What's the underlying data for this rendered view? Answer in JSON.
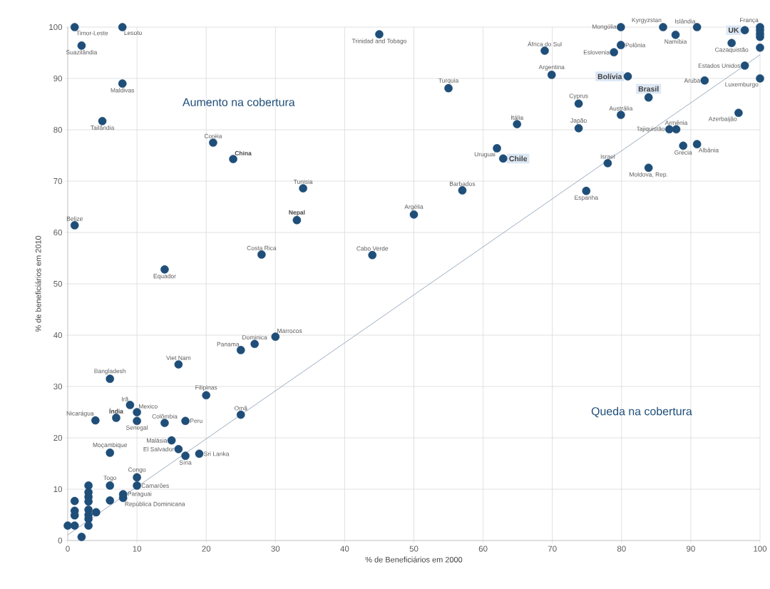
{
  "chart_data": {
    "type": "scatter",
    "xlabel": "% de Beneficiários em 2000",
    "ylabel": "% de beneficiários em 2010",
    "xlim": [
      0,
      100
    ],
    "ylim": [
      0,
      100
    ],
    "xticks": [
      0,
      10,
      20,
      30,
      40,
      50,
      60,
      70,
      80,
      90,
      100
    ],
    "yticks": [
      0,
      10,
      20,
      30,
      40,
      50,
      60,
      70,
      80,
      90,
      100
    ],
    "grid": true,
    "marker": "circle",
    "series": [
      {
        "color": "#1f4e79",
        "x": [
          1.0,
          7.9,
          2.0,
          7.9,
          5.0,
          1.0,
          21.0,
          23.9,
          34.0,
          33.1,
          28.0,
          14.0,
          45.0,
          55.0,
          64.9,
          62.0,
          62.9,
          57.0,
          50.0,
          44.0,
          68.9,
          69.9,
          79.9,
          79.9,
          78.9,
          80.9,
          83.9,
          79.9,
          73.8,
          73.8,
          86.0,
          90.9,
          87.8,
          97.8,
          100,
          95.9,
          97.8,
          92.0,
          100,
          96.9,
          86.9,
          87.9,
          88.9,
          90.9,
          78.0,
          83.9,
          74.9,
          30.0,
          27.0,
          25.0,
          16.0,
          6.1,
          20.0,
          25.0,
          9.0,
          10.0,
          10.0,
          14.0,
          17.0,
          15.0,
          16.0,
          19.0,
          17.0,
          7.0,
          4.0,
          6.1,
          10.0,
          10.0,
          6.1,
          8.0,
          8.0,
          100,
          100,
          100,
          100,
          6.1,
          1.0,
          1.0,
          1.0,
          1.0,
          0,
          2.0,
          3,
          3,
          3,
          3,
          3,
          3,
          3,
          3,
          4.1
        ],
        "values": [
          100,
          100,
          96.4,
          89.0,
          81.7,
          61.4,
          77.5,
          74.3,
          68.6,
          62.4,
          55.7,
          52.8,
          98.6,
          88.1,
          81.1,
          76.4,
          74.4,
          68.2,
          63.5,
          55.6,
          95.4,
          90.7,
          100,
          96.5,
          95.1,
          90.4,
          86.3,
          82.9,
          85.1,
          80.3,
          100,
          100,
          98.5,
          99.4,
          100,
          96.9,
          92.5,
          89.6,
          90.0,
          83.3,
          80.1,
          80.1,
          76.9,
          77.2,
          73.5,
          72.6,
          68.1,
          39.7,
          38.3,
          37.1,
          34.3,
          31.5,
          28.3,
          24.5,
          26.4,
          25.0,
          23.3,
          22.9,
          23.3,
          19.5,
          17.8,
          16.9,
          16.5,
          23.9,
          23.4,
          17.1,
          12.3,
          10.7,
          10.7,
          9.0,
          8.3,
          99.4,
          98.7,
          98.1,
          96.0,
          7.8,
          7.7,
          5.8,
          4.9,
          2.9,
          2.9,
          0.7,
          10.7,
          9.4,
          8.5,
          7.6,
          6.0,
          5.0,
          4.2,
          2.9,
          5.5
        ]
      },
      {
        "type": "line",
        "color": "#8497b0",
        "marker": "none",
        "x": [
          0,
          100
        ],
        "values": [
          1.1,
          94.6
        ]
      }
    ],
    "annotations": [
      "Aumento na cobertura",
      "Queda na cobertura",
      {
        "text": "Timor-Leste",
        "x": 1.0,
        "y": 100
      },
      {
        "text": "Lesoto",
        "x": 7.9,
        "y": 100
      },
      {
        "text": "Suazilândia",
        "x": 2.0,
        "y": 96.4
      },
      {
        "text": "Maldivas",
        "x": 7.9,
        "y": 89.0
      },
      {
        "text": "Tailândia",
        "x": 5.0,
        "y": 81.7
      },
      {
        "text": "Belize",
        "x": 1.0,
        "y": 61.4
      },
      {
        "text": "Coréia",
        "x": 21.0,
        "y": 77.5
      },
      {
        "text": "China",
        "x": 23.9,
        "y": 74.3
      },
      {
        "text": "Tunisia",
        "x": 34.0,
        "y": 68.6
      },
      {
        "text": "Nepal",
        "x": 33.1,
        "y": 62.4
      },
      {
        "text": "Costa Rica",
        "x": 28.0,
        "y": 55.7
      },
      {
        "text": "Equador",
        "x": 14.0,
        "y": 52.8
      },
      {
        "text": "Trinidad and Tobago",
        "x": 45.0,
        "y": 98.6
      },
      {
        "text": "Turquia",
        "x": 55.0,
        "y": 88.1
      },
      {
        "text": "Itália",
        "x": 64.9,
        "y": 81.1
      },
      {
        "text": "Uruguai",
        "x": 62.0,
        "y": 76.4
      },
      {
        "text": "Chile",
        "x": 62.9,
        "y": 74.4
      },
      {
        "text": "Barbados",
        "x": 57.0,
        "y": 68.2
      },
      {
        "text": "Argélia",
        "x": 50.0,
        "y": 63.5
      },
      {
        "text": "Cabo Verde",
        "x": 44.0,
        "y": 55.6
      },
      {
        "text": "África do Sul",
        "x": 68.9,
        "y": 95.4
      },
      {
        "text": "Argentina",
        "x": 69.9,
        "y": 90.7
      },
      {
        "text": "Mongólia",
        "x": 79.9,
        "y": 100
      },
      {
        "text": "Polônia",
        "x": 79.9,
        "y": 96.5
      },
      {
        "text": "Eslovenia",
        "x": 78.9,
        "y": 95.1
      },
      {
        "text": "Bolívia",
        "x": 80.9,
        "y": 90.4
      },
      {
        "text": "Brasil",
        "x": 83.9,
        "y": 86.3
      },
      {
        "text": "Austrália",
        "x": 79.9,
        "y": 82.9
      },
      {
        "text": "Cyprus",
        "x": 73.8,
        "y": 85.1
      },
      {
        "text": "Japão",
        "x": 73.8,
        "y": 80.3
      },
      {
        "text": "Kyrgyzstan",
        "x": 86.0,
        "y": 100
      },
      {
        "text": "Islândia",
        "x": 90.9,
        "y": 100
      },
      {
        "text": "Namíbia",
        "x": 87.8,
        "y": 98.5
      },
      {
        "text": "UK",
        "x": 97.8,
        "y": 99.4
      },
      {
        "text": "França",
        "x": 100,
        "y": 100
      },
      {
        "text": "Cazaquistão",
        "x": 95.9,
        "y": 96.9
      },
      {
        "text": "Estados Unidos",
        "x": 97.8,
        "y": 92.5
      },
      {
        "text": "Aruba",
        "x": 92.0,
        "y": 89.6
      },
      {
        "text": "Luxemburgo",
        "x": 100,
        "y": 90.0
      },
      {
        "text": "Azerbaijão",
        "x": 96.9,
        "y": 83.3
      },
      {
        "text": "Tajiquistão",
        "x": 86.9,
        "y": 80.1
      },
      {
        "text": "Armênia",
        "x": 87.9,
        "y": 80.1
      },
      {
        "text": "Grécia",
        "x": 88.9,
        "y": 76.9
      },
      {
        "text": "Albânia",
        "x": 90.9,
        "y": 77.2
      },
      {
        "text": "Israel",
        "x": 78.0,
        "y": 73.5
      },
      {
        "text": "Moldova, Rep.",
        "x": 83.9,
        "y": 72.6
      },
      {
        "text": "Espanha",
        "x": 74.9,
        "y": 68.1
      },
      {
        "text": "Marrocos",
        "x": 30.0,
        "y": 39.7
      },
      {
        "text": "Dominica",
        "x": 27.0,
        "y": 38.3
      },
      {
        "text": "Panama",
        "x": 25.0,
        "y": 37.1
      },
      {
        "text": "Viet Nam",
        "x": 16.0,
        "y": 34.3
      },
      {
        "text": "Bangladesh",
        "x": 6.1,
        "y": 31.5
      },
      {
        "text": "Filipinas",
        "x": 20.0,
        "y": 28.3
      },
      {
        "text": "Omã",
        "x": 25.0,
        "y": 24.5
      },
      {
        "text": "Irã",
        "x": 9.0,
        "y": 26.4
      },
      {
        "text": "Mexico",
        "x": 10.0,
        "y": 25.0
      },
      {
        "text": "Senegal",
        "x": 10.0,
        "y": 23.3
      },
      {
        "text": "Colômbia",
        "x": 14.0,
        "y": 22.9
      },
      {
        "text": "Peru",
        "x": 17.0,
        "y": 23.3
      },
      {
        "text": "Malásia",
        "x": 15.0,
        "y": 19.5
      },
      {
        "text": "El Salvador",
        "x": 16.0,
        "y": 17.8
      },
      {
        "text": "Sri Lanka",
        "x": 19.0,
        "y": 16.9
      },
      {
        "text": "Síria",
        "x": 17.0,
        "y": 16.5
      },
      {
        "text": "Índia",
        "x": 7.0,
        "y": 23.9
      },
      {
        "text": "Nicarágua",
        "x": 4.0,
        "y": 23.4
      },
      {
        "text": "Moçambique",
        "x": 6.1,
        "y": 17.1
      },
      {
        "text": "Congo",
        "x": 10.0,
        "y": 12.3
      },
      {
        "text": "Camarões",
        "x": 10.0,
        "y": 10.7
      },
      {
        "text": "Togo",
        "x": 6.1,
        "y": 10.7
      },
      {
        "text": "Paraguai",
        "x": 8.0,
        "y": 9.0
      },
      {
        "text": "República Dominicana",
        "x": 8.0,
        "y": 8.3
      }
    ]
  }
}
